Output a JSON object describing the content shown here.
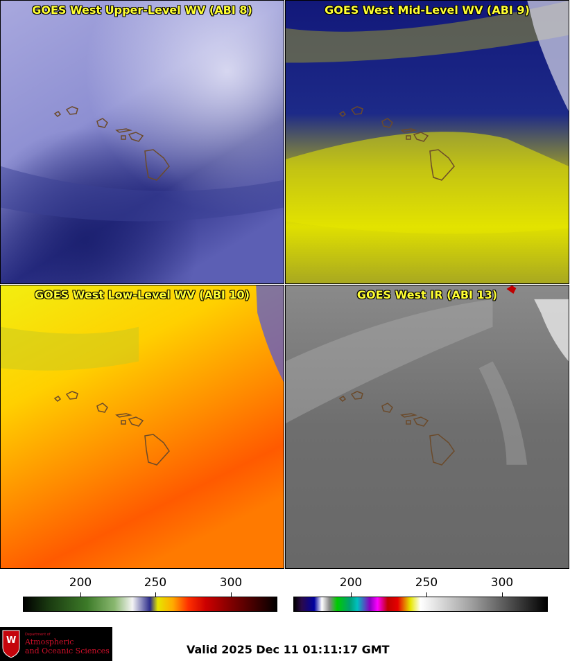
{
  "panels": [
    {
      "title": "GOES West Upper-Level WV (ABI 8)"
    },
    {
      "title": "GOES West Mid-Level WV (ABI 9)"
    },
    {
      "title": "GOES West Low-Level WV (ABI 10)"
    },
    {
      "title": "GOES West IR (ABI 13)"
    }
  ],
  "colorbars": {
    "left": {
      "ticks": [
        "200",
        "250",
        "300"
      ]
    },
    "right": {
      "ticks": [
        "200",
        "250",
        "300"
      ]
    }
  },
  "logo": {
    "line1": "Department of",
    "line2": "Atmospheric",
    "line3": "and Oceanic Sciences",
    "crest_letter": "W"
  },
  "footer": {
    "valid": "Valid 2025 Dec 11 01:11:17 GMT"
  },
  "colors": {
    "title": "#ffff33",
    "upper_wv_dark": "#1a1f6e",
    "upper_wv_light": "#c8c8ee",
    "mid_wv_dark": "#0c1a7a",
    "mid_wv_yellow": "#e6e600",
    "low_wv_yellow": "#ffee00",
    "low_wv_orange": "#ff6a00",
    "ir_gray": "#6e6e6e",
    "island_outline": "#6b4a2a"
  }
}
